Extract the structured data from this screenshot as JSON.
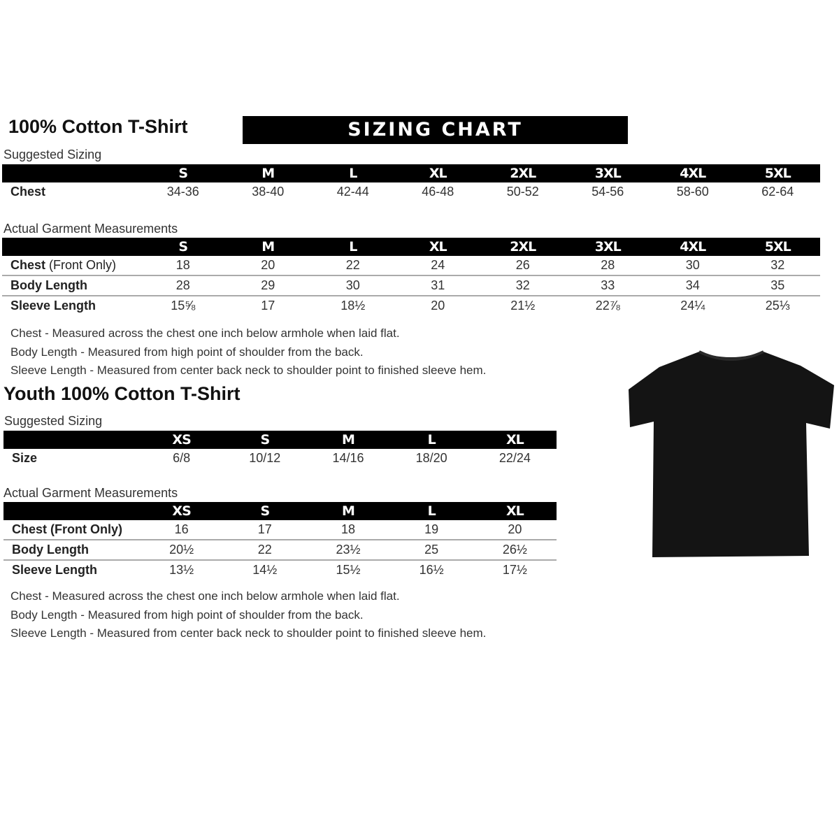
{
  "adult": {
    "title": "100% Cotton T-Shirt",
    "banner": "SIZING CHART",
    "suggested_label": "Suggested Sizing",
    "sizes": [
      "S",
      "M",
      "L",
      "XL",
      "2XL",
      "3XL",
      "4XL",
      "5XL"
    ],
    "suggested_rows": [
      {
        "label": "Chest",
        "values": [
          "34-36",
          "38-40",
          "42-44",
          "46-48",
          "50-52",
          "54-56",
          "58-60",
          "62-64"
        ]
      }
    ],
    "actual_label": "Actual Garment Measurements",
    "actual_rows": [
      {
        "label": "Chest",
        "label_extra": "(Front Only)",
        "values": [
          "18",
          "20",
          "22",
          "24",
          "26",
          "28",
          "30",
          "32"
        ]
      },
      {
        "label": "Body Length",
        "label_extra": "",
        "values": [
          "28",
          "29",
          "30",
          "31",
          "32",
          "33",
          "34",
          "35"
        ]
      },
      {
        "label": "Sleeve Length",
        "label_extra": "",
        "values": [
          "15⅝",
          "17",
          "18½",
          "20",
          "21½",
          "22⅞",
          "24¼",
          "25⅓"
        ]
      }
    ],
    "notes": [
      "Chest - Measured across the chest one inch below armhole when laid flat.",
      "Body Length - Measured from high point of shoulder from the back.",
      "Sleeve Length - Measured from center back neck to shoulder point to finished sleeve hem."
    ]
  },
  "youth": {
    "title": "Youth 100% Cotton T-Shirt",
    "suggested_label": "Suggested Sizing",
    "sizes": [
      "XS",
      "S",
      "M",
      "L",
      "XL"
    ],
    "suggested_rows": [
      {
        "label": "Size",
        "values": [
          "6/8",
          "10/12",
          "14/16",
          "18/20",
          "22/24"
        ]
      }
    ],
    "actual_label": "Actual Garment Measurements",
    "actual_rows": [
      {
        "label": "Chest (Front Only)",
        "values": [
          "16",
          "17",
          "18",
          "19",
          "20"
        ]
      },
      {
        "label": "Body Length",
        "values": [
          "20½",
          "22",
          "23½",
          "25",
          "26½"
        ]
      },
      {
        "label": "Sleeve Length",
        "values": [
          "13½",
          "14½",
          "15½",
          "16½",
          "17½"
        ]
      }
    ],
    "notes": [
      "Chest - Measured across the chest one inch below armhole when laid flat.",
      "Body Length - Measured from high point of shoulder from the back.",
      "Sleeve Length - Measured from center back neck to shoulder point to finished sleeve hem."
    ]
  },
  "image": {
    "icon": "tshirt-icon",
    "color": "#111111"
  }
}
